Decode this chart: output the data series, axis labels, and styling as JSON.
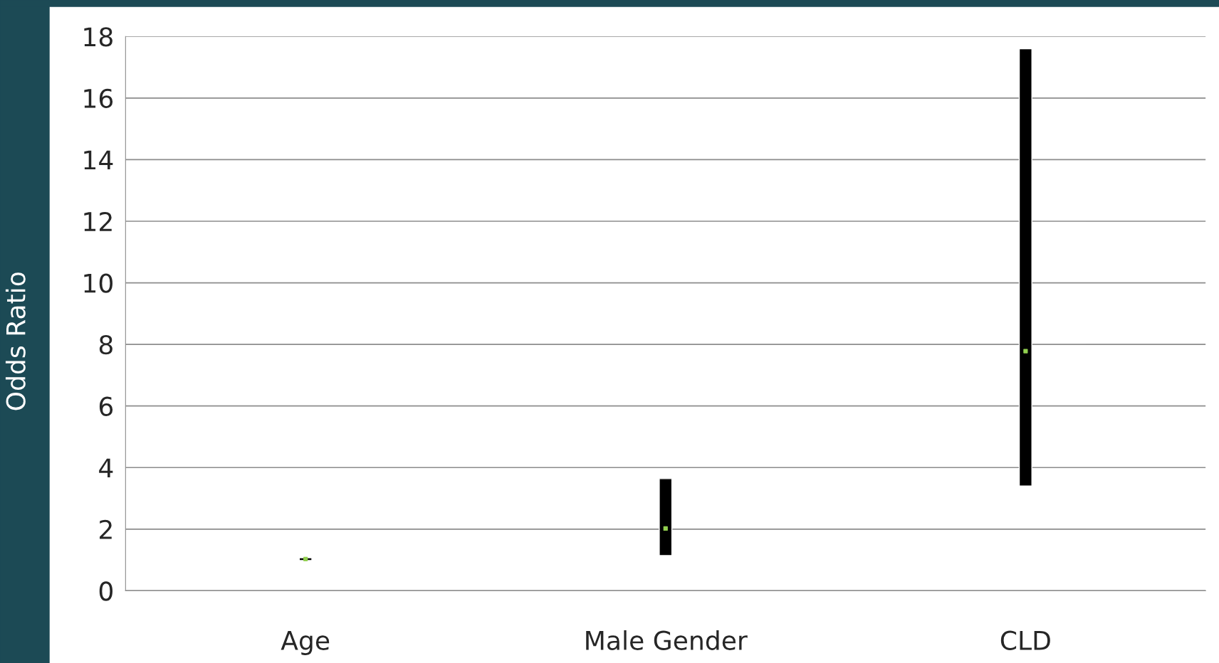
{
  "chart_data": {
    "type": "bar",
    "ylabel": "Odds Ratio",
    "categories": [
      "Age",
      "Male Gender",
      "CLD"
    ],
    "series": [
      {
        "color": "#000000",
        "base": [
          0.98,
          1.14,
          3.4
        ],
        "values": [
          0.09,
          2.5,
          14.2
        ]
      },
      {
        "type": "scatter",
        "color": "#92d050",
        "x": [
          "Age",
          "Male Gender",
          "CLD"
        ],
        "values": [
          1.03,
          2.02,
          7.78
        ],
        "marker": "square"
      }
    ],
    "ylim": [
      0,
      18
    ],
    "yticks": [
      0,
      2,
      4,
      6,
      8,
      10,
      12,
      14,
      16,
      18
    ],
    "grid": "y",
    "legend": false
  }
}
